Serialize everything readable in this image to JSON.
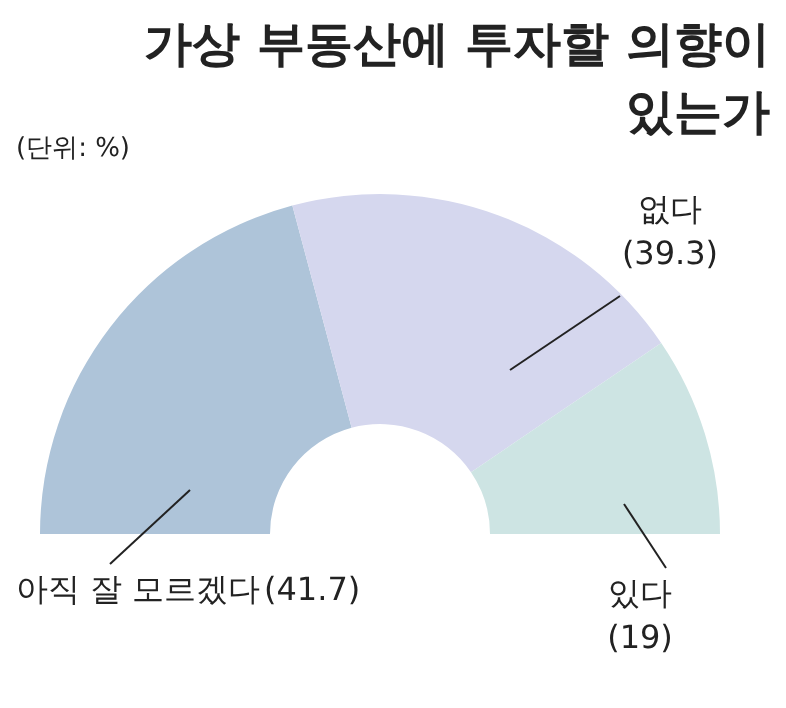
{
  "chart_data": {
    "type": "donut",
    "title": "가상 부동산에 투자할 의향이 있는가",
    "annotations": [
      "(단위: %)"
    ],
    "categories": [
      "아직 잘 모르겠다",
      "없다",
      "있다"
    ],
    "values": [
      41.7,
      39.3,
      19
    ],
    "colors": [
      "#aec4d9",
      "#d5d7ee",
      "#cde4e3"
    ],
    "value_labels": [
      "(41.7)",
      "(39.3)",
      "(19)"
    ]
  }
}
